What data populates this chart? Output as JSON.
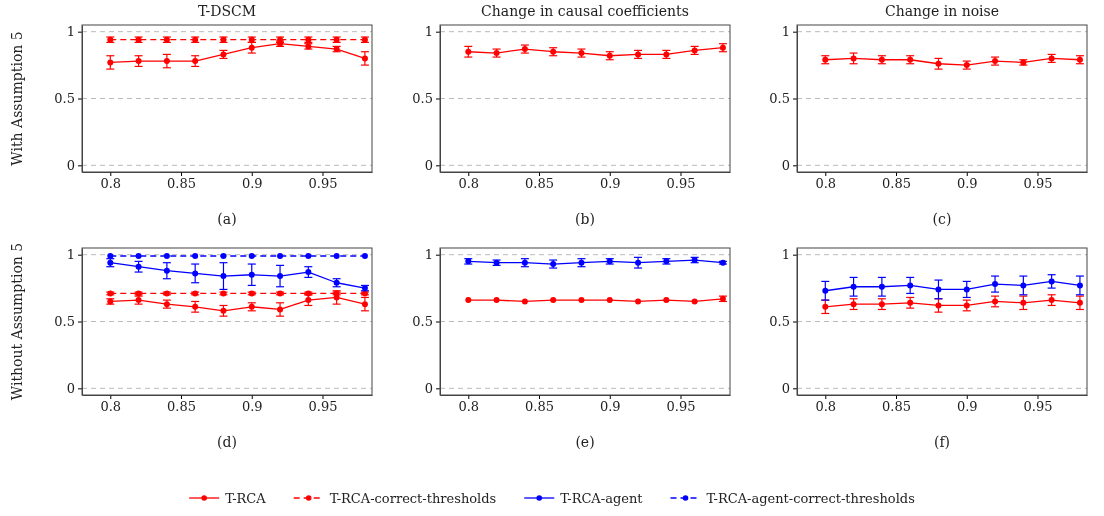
{
  "chart_data": [
    {
      "type": "line",
      "title": "T-DSCM",
      "xlabel": "(a)",
      "ylabel": "With Assumption 5",
      "x": [
        0.8,
        0.82,
        0.84,
        0.86,
        0.88,
        0.9,
        0.92,
        0.94,
        0.96,
        0.98
      ],
      "xlim": [
        0.78,
        0.985
      ],
      "ylim": [
        -0.05,
        1.05
      ],
      "xticks": [
        0.8,
        0.85,
        0.9,
        0.95
      ],
      "yticks": [
        0,
        0.5,
        1
      ],
      "grid": "y",
      "marker": "circle",
      "legend": false,
      "series": [
        {
          "color": "#ff0000",
          "values": [
            0.77,
            0.78,
            0.78,
            0.78,
            0.83,
            0.88,
            0.91,
            0.89,
            0.87,
            0.8
          ],
          "errors": [
            0.05,
            0.04,
            0.05,
            0.04,
            0.03,
            0.04,
            0.02,
            0.02,
            0.02,
            0.05
          ]
        },
        {
          "color": "#ff0000",
          "line_style": "dashed",
          "values": [
            0.94,
            0.94,
            0.94,
            0.94,
            0.94,
            0.94,
            0.94,
            0.94,
            0.94,
            0.94
          ],
          "errors": [
            0.02,
            0.02,
            0.02,
            0.02,
            0.02,
            0.02,
            0.02,
            0.02,
            0.02,
            0.02
          ]
        }
      ]
    },
    {
      "type": "line",
      "title": "Change in causal coefficients",
      "xlabel": "(b)",
      "x": [
        0.8,
        0.82,
        0.84,
        0.86,
        0.88,
        0.9,
        0.92,
        0.94,
        0.96,
        0.98
      ],
      "xlim": [
        0.78,
        0.985
      ],
      "ylim": [
        -0.05,
        1.05
      ],
      "xticks": [
        0.8,
        0.85,
        0.9,
        0.95
      ],
      "yticks": [
        0,
        0.5,
        1
      ],
      "grid": "y",
      "marker": "circle",
      "legend": false,
      "series": [
        {
          "color": "#ff0000",
          "values": [
            0.85,
            0.84,
            0.87,
            0.85,
            0.84,
            0.82,
            0.83,
            0.83,
            0.86,
            0.88
          ],
          "errors": [
            0.04,
            0.03,
            0.03,
            0.03,
            0.03,
            0.03,
            0.03,
            0.03,
            0.03,
            0.03
          ]
        }
      ]
    },
    {
      "type": "line",
      "title": "Change in noise",
      "xlabel": "(c)",
      "x": [
        0.8,
        0.82,
        0.84,
        0.86,
        0.88,
        0.9,
        0.92,
        0.94,
        0.96,
        0.98
      ],
      "xlim": [
        0.78,
        0.985
      ],
      "ylim": [
        -0.05,
        1.05
      ],
      "xticks": [
        0.8,
        0.85,
        0.9,
        0.95
      ],
      "yticks": [
        0,
        0.5,
        1
      ],
      "grid": "y",
      "marker": "circle",
      "legend": false,
      "series": [
        {
          "color": "#ff0000",
          "values": [
            0.79,
            0.8,
            0.79,
            0.79,
            0.76,
            0.75,
            0.78,
            0.77,
            0.8,
            0.79
          ],
          "errors": [
            0.03,
            0.04,
            0.03,
            0.03,
            0.04,
            0.03,
            0.03,
            0.02,
            0.03,
            0.03
          ]
        }
      ]
    },
    {
      "type": "line",
      "xlabel": "(d)",
      "ylabel": "Without Assumption 5",
      "x": [
        0.8,
        0.82,
        0.84,
        0.86,
        0.88,
        0.9,
        0.92,
        0.94,
        0.96,
        0.98
      ],
      "xlim": [
        0.78,
        0.985
      ],
      "ylim": [
        -0.05,
        1.05
      ],
      "xticks": [
        0.8,
        0.85,
        0.9,
        0.95
      ],
      "yticks": [
        0,
        0.5,
        1
      ],
      "grid": "y",
      "marker": "circle",
      "legend": "bottom",
      "series": [
        {
          "name": "T-RCA",
          "color": "#ff0000",
          "values": [
            0.65,
            0.66,
            0.63,
            0.61,
            0.58,
            0.61,
            0.59,
            0.66,
            0.68,
            0.63
          ],
          "errors": [
            0.02,
            0.03,
            0.03,
            0.04,
            0.04,
            0.03,
            0.05,
            0.04,
            0.05,
            0.05
          ]
        },
        {
          "name": "T-RCA-correct-thresholds",
          "color": "#ff0000",
          "line_style": "dashed",
          "values": [
            0.71,
            0.71,
            0.71,
            0.71,
            0.71,
            0.71,
            0.71,
            0.71,
            0.71,
            0.71
          ],
          "errors": [
            0.01,
            0.01,
            0.01,
            0.01,
            0.01,
            0.01,
            0.01,
            0.01,
            0.01,
            0.01
          ]
        },
        {
          "name": "T-RCA-agent",
          "color": "#0000ff",
          "values": [
            0.94,
            0.91,
            0.88,
            0.86,
            0.84,
            0.85,
            0.84,
            0.87,
            0.79,
            0.75
          ],
          "errors": [
            0.03,
            0.04,
            0.06,
            0.07,
            0.1,
            0.08,
            0.08,
            0.04,
            0.03,
            0.02
          ]
        },
        {
          "name": "T-RCA-agent-correct-thresholds",
          "color": "#0000ff",
          "line_style": "dashed",
          "values": [
            0.99,
            0.99,
            0.99,
            0.99,
            0.99,
            0.99,
            0.99,
            0.99,
            0.99,
            0.99
          ]
        }
      ]
    },
    {
      "type": "line",
      "xlabel": "(e)",
      "x": [
        0.8,
        0.82,
        0.84,
        0.86,
        0.88,
        0.9,
        0.92,
        0.94,
        0.96,
        0.98
      ],
      "xlim": [
        0.78,
        0.985
      ],
      "ylim": [
        -0.05,
        1.05
      ],
      "xticks": [
        0.8,
        0.85,
        0.9,
        0.95
      ],
      "yticks": [
        0,
        0.5,
        1
      ],
      "grid": "y",
      "marker": "circle",
      "legend": false,
      "series": [
        {
          "color": "#ff0000",
          "values": [
            0.66,
            0.66,
            0.65,
            0.66,
            0.66,
            0.66,
            0.65,
            0.66,
            0.65,
            0.67
          ],
          "errors": [
            null,
            null,
            null,
            null,
            null,
            null,
            null,
            null,
            null,
            0.02
          ]
        },
        {
          "color": "#0000ff",
          "values": [
            0.95,
            0.94,
            0.94,
            0.93,
            0.94,
            0.95,
            0.94,
            0.95,
            0.96,
            0.94
          ],
          "errors": [
            0.02,
            0.02,
            0.03,
            0.03,
            0.03,
            0.02,
            0.04,
            0.02,
            0.02,
            0.01
          ]
        }
      ]
    },
    {
      "type": "line",
      "xlabel": "(f)",
      "x": [
        0.8,
        0.82,
        0.84,
        0.86,
        0.88,
        0.9,
        0.92,
        0.94,
        0.96,
        0.98
      ],
      "xlim": [
        0.78,
        0.985
      ],
      "ylim": [
        -0.05,
        1.05
      ],
      "xticks": [
        0.8,
        0.85,
        0.9,
        0.95
      ],
      "yticks": [
        0,
        0.5,
        1
      ],
      "grid": "y",
      "marker": "circle",
      "legend": false,
      "series": [
        {
          "color": "#ff0000",
          "values": [
            0.61,
            0.63,
            0.63,
            0.64,
            0.62,
            0.62,
            0.65,
            0.64,
            0.66,
            0.64
          ],
          "errors": [
            0.05,
            0.04,
            0.04,
            0.04,
            0.05,
            0.04,
            0.04,
            0.05,
            0.04,
            0.05
          ]
        },
        {
          "color": "#0000ff",
          "values": [
            0.73,
            0.76,
            0.76,
            0.77,
            0.74,
            0.74,
            0.78,
            0.77,
            0.8,
            0.77
          ],
          "errors": [
            0.07,
            0.07,
            0.07,
            0.06,
            0.07,
            0.06,
            0.06,
            0.07,
            0.05,
            0.07
          ]
        }
      ]
    }
  ]
}
